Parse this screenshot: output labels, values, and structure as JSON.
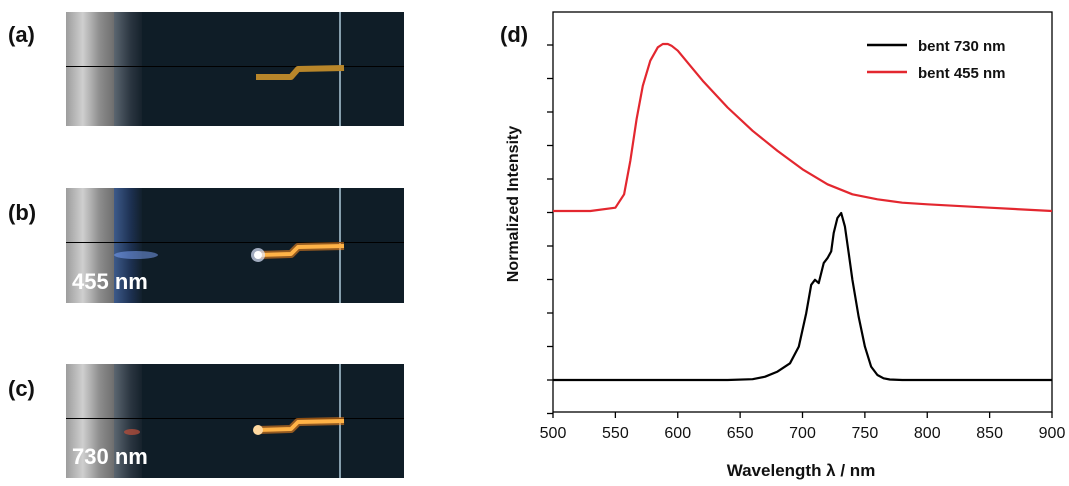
{
  "panels": {
    "a": {
      "label": "(a)",
      "caption": ""
    },
    "b": {
      "label": "(b)",
      "caption": "455 nm"
    },
    "c": {
      "label": "(c)",
      "caption": "730 nm"
    },
    "d": {
      "label": "(d)"
    }
  },
  "colors": {
    "red": "#e3272f",
    "black": "#000000",
    "wire_dim": "#b8862a",
    "wire_glow": "#ff8a1e"
  },
  "chart_data": {
    "type": "line",
    "xlabel": "Wavelength λ / nm",
    "ylabel": "Normalized Intensity",
    "xlim": [
      500,
      900
    ],
    "x_ticks": [
      500,
      550,
      600,
      650,
      700,
      750,
      800,
      850,
      900
    ],
    "y_ticks_labeled": false,
    "legend_position": "top-right",
    "series": [
      {
        "name": "bent 730 nm",
        "color": "#000000",
        "x": [
          500,
          640,
          660,
          670,
          680,
          690,
          697,
          703,
          707,
          710,
          713,
          717,
          720,
          723,
          725,
          728,
          731,
          734,
          737,
          740,
          745,
          750,
          755,
          760,
          765,
          770,
          780,
          900
        ],
        "y": [
          0.0,
          0.0,
          0.005,
          0.02,
          0.05,
          0.1,
          0.2,
          0.4,
          0.57,
          0.6,
          0.58,
          0.7,
          0.73,
          0.77,
          0.88,
          0.97,
          1.0,
          0.92,
          0.76,
          0.6,
          0.38,
          0.2,
          0.08,
          0.03,
          0.01,
          0.003,
          0.0,
          0.0
        ]
      },
      {
        "name": "bent 455 nm",
        "color": "#e3272f",
        "x": [
          500,
          530,
          550,
          557,
          562,
          567,
          572,
          578,
          584,
          588,
          592,
          595,
          600,
          610,
          620,
          640,
          660,
          680,
          700,
          720,
          740,
          760,
          780,
          800,
          850,
          900
        ],
        "y": [
          0.0,
          0.0,
          0.02,
          0.1,
          0.3,
          0.55,
          0.75,
          0.9,
          0.98,
          1.0,
          1.0,
          0.99,
          0.96,
          0.87,
          0.78,
          0.62,
          0.48,
          0.36,
          0.25,
          0.16,
          0.1,
          0.07,
          0.05,
          0.04,
          0.02,
          0.0
        ]
      }
    ]
  }
}
